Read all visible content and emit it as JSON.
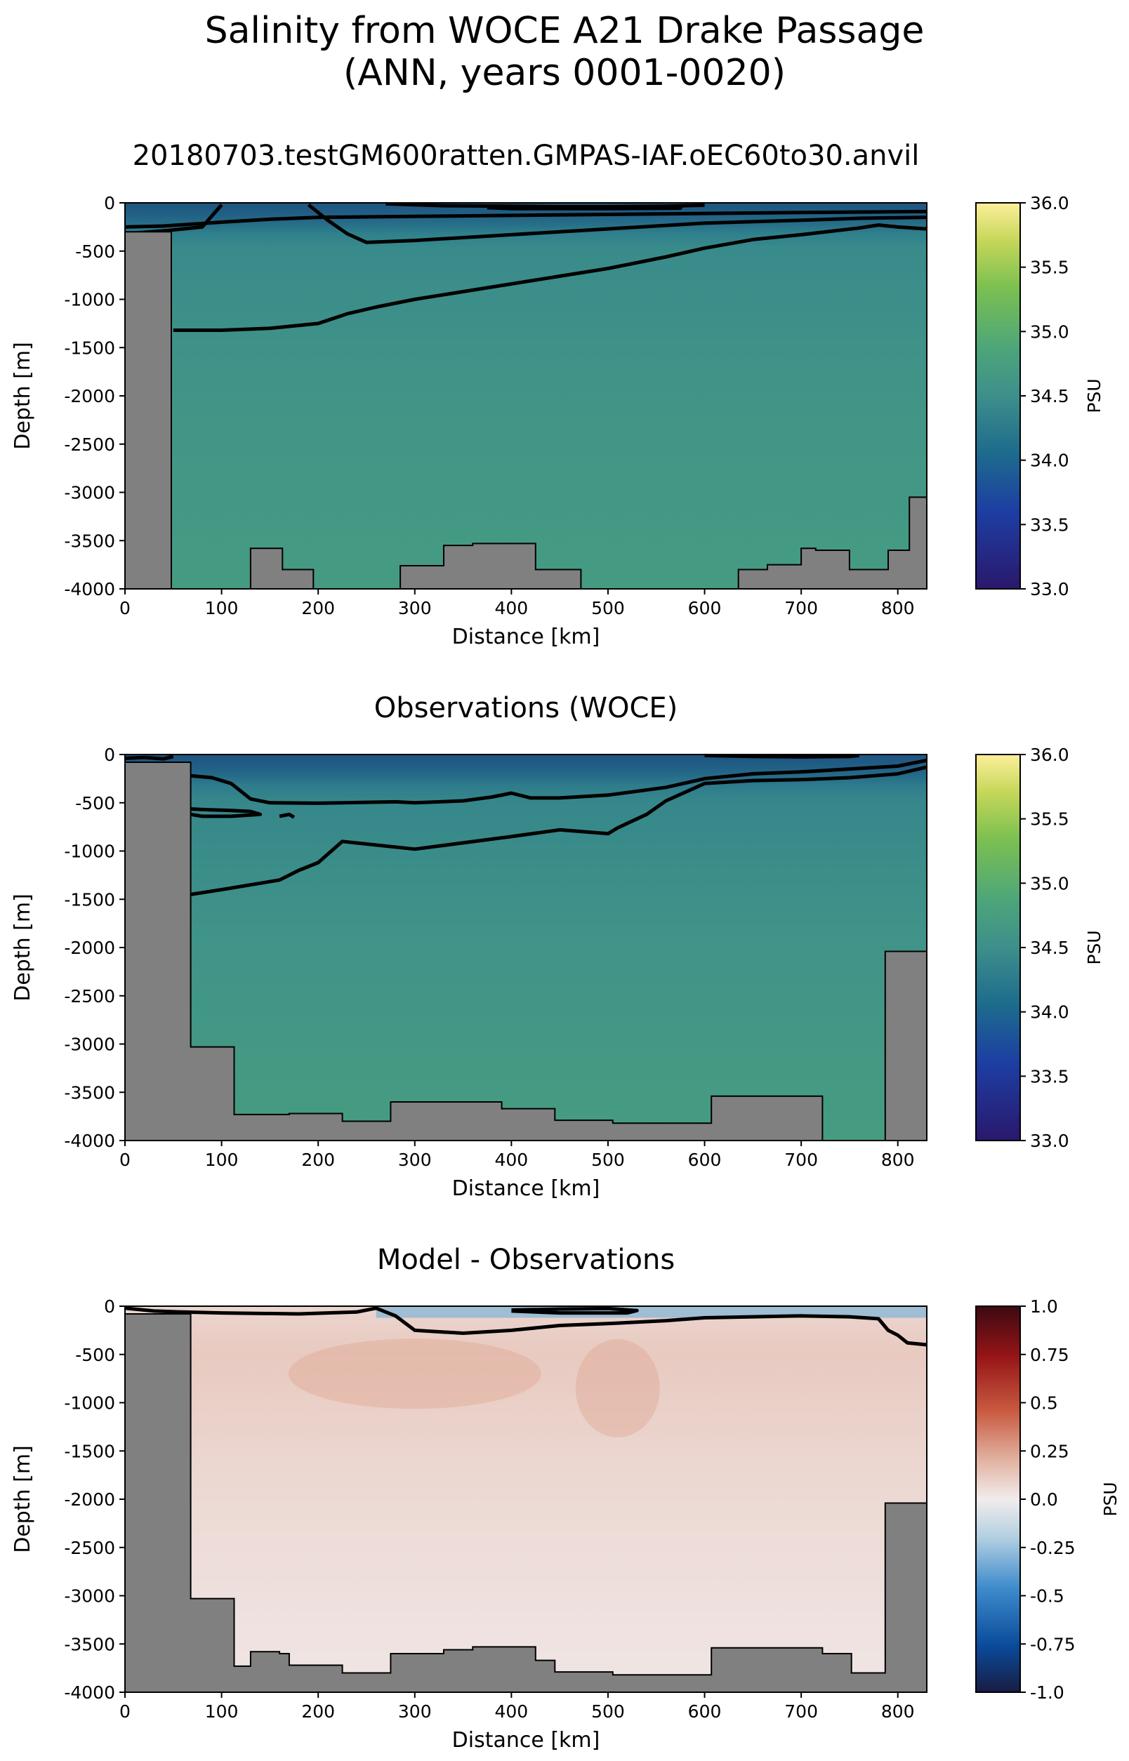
{
  "figure": {
    "title_line1": "Salinity from WOCE A21 Drake Passage",
    "title_line2": "(ANN, years 0001-0020)"
  },
  "chart_data": [
    {
      "type": "heatmap",
      "title": "20180703.testGM600ratten.GMPAS-IAF.oEC60to30.anvil",
      "xlabel": "Distance [km]",
      "ylabel": "Depth [m]",
      "xlim": [
        0,
        830
      ],
      "ylim": [
        -4000,
        0
      ],
      "xticks": [
        0,
        100,
        200,
        300,
        400,
        500,
        600,
        700,
        800
      ],
      "yticks": [
        0,
        -500,
        -1000,
        -1500,
        -2000,
        -2500,
        -3000,
        -3500,
        -4000
      ],
      "colorbar": {
        "label": "PSU",
        "range": [
          33.0,
          36.0
        ],
        "ticks": [
          33.0,
          33.5,
          34.0,
          34.5,
          35.0,
          35.5,
          36.0
        ],
        "colormap": "haline"
      },
      "field_approx": {
        "surface_psu": 34.05,
        "mid_psu": 34.45,
        "deep_psu": 34.7
      },
      "contours": [
        {
          "x": [
            0,
            40,
            100,
            150,
            200,
            300,
            400,
            500,
            600,
            700,
            760,
            830
          ],
          "y": [
            -250,
            -240,
            -200,
            -170,
            -150,
            -140,
            -130,
            -120,
            -110,
            -100,
            -95,
            -90
          ]
        },
        {
          "x": [
            50,
            100,
            150,
            200,
            230,
            260,
            300,
            350,
            400,
            450,
            500,
            560,
            600,
            650,
            700,
            760,
            780,
            800,
            830
          ],
          "y": [
            -1320,
            -1320,
            -1300,
            -1250,
            -1150,
            -1080,
            -1000,
            -920,
            -840,
            -760,
            -680,
            -560,
            -470,
            -380,
            -330,
            -260,
            -230,
            -250,
            -270
          ]
        },
        {
          "x": [
            0,
            40,
            80,
            100
          ],
          "y": [
            -320,
            -290,
            -250,
            -20
          ]
        },
        {
          "x": [
            190,
            210,
            230,
            250,
            300,
            400,
            500,
            600,
            700,
            760,
            830
          ],
          "y": [
            -20,
            -180,
            -320,
            -410,
            -390,
            -330,
            -270,
            -210,
            -180,
            -160,
            -150
          ]
        },
        {
          "x": [
            270,
            330,
            400,
            450,
            500,
            560,
            600
          ],
          "y": [
            -10,
            -30,
            -35,
            -40,
            -40,
            -35,
            -25
          ]
        },
        {
          "x": [
            375,
            400,
            500,
            570,
            575,
            500,
            400,
            375
          ],
          "y": [
            -50,
            -45,
            -40,
            -40,
            -55,
            -60,
            -60,
            -50
          ]
        }
      ],
      "topography": {
        "x": [
          0,
          0,
          48,
          48,
          130,
          130,
          163,
          163,
          195,
          195,
          285,
          285,
          330,
          330,
          360,
          360,
          425,
          425,
          472,
          472,
          635,
          635,
          665,
          665,
          700,
          700,
          715,
          715,
          750,
          750,
          790,
          790,
          812,
          812,
          830,
          830
        ],
        "y": [
          -4000,
          -300,
          -300,
          -4000,
          -4000,
          -3580,
          -3580,
          -3800,
          -3800,
          -4000,
          -4000,
          -3760,
          -3760,
          -3550,
          -3550,
          -3530,
          -3530,
          -3800,
          -3800,
          -4000,
          -4000,
          -3800,
          -3800,
          -3750,
          -3750,
          -3580,
          -3580,
          -3600,
          -3600,
          -3800,
          -3800,
          -3600,
          -3600,
          -3050,
          -3050,
          -4000
        ]
      }
    },
    {
      "type": "heatmap",
      "title": "Observations (WOCE)",
      "xlabel": "Distance [km]",
      "ylabel": "Depth [m]",
      "xlim": [
        0,
        830
      ],
      "ylim": [
        -4000,
        0
      ],
      "xticks": [
        0,
        100,
        200,
        300,
        400,
        500,
        600,
        700,
        800
      ],
      "yticks": [
        0,
        -500,
        -1000,
        -1500,
        -2000,
        -2500,
        -3000,
        -3500,
        -4000
      ],
      "colorbar": {
        "label": "PSU",
        "range": [
          33.0,
          36.0
        ],
        "ticks": [
          33.0,
          33.5,
          34.0,
          34.5,
          35.0,
          35.5,
          36.0
        ],
        "colormap": "haline"
      },
      "field_approx": {
        "surface_psu": 34.0,
        "mid_psu": 34.4,
        "deep_psu": 34.72
      },
      "contours": [
        {
          "x": [
            68,
            100,
            160,
            180,
            200,
            225,
            300,
            400,
            450,
            500,
            510,
            540,
            560,
            600,
            650,
            700,
            750,
            800,
            830
          ],
          "y": [
            -1450,
            -1400,
            -1300,
            -1200,
            -1120,
            -900,
            -980,
            -850,
            -780,
            -820,
            -760,
            -620,
            -480,
            -300,
            -270,
            -260,
            -240,
            -200,
            -130
          ]
        },
        {
          "x": [
            68,
            90,
            110,
            120,
            130,
            150,
            200,
            280,
            300,
            350,
            380,
            400,
            420,
            450,
            500,
            560,
            600,
            650,
            700,
            750,
            800,
            830
          ],
          "y": [
            -220,
            -240,
            -300,
            -380,
            -460,
            -500,
            -505,
            -490,
            -500,
            -480,
            -440,
            -400,
            -450,
            -450,
            -420,
            -340,
            -250,
            -200,
            -180,
            -150,
            -120,
            -60
          ]
        },
        {
          "x": [
            60,
            80,
            110,
            130,
            140,
            110,
            80,
            68
          ],
          "y": [
            -560,
            -570,
            -580,
            -590,
            -620,
            -640,
            -640,
            -620
          ]
        },
        {
          "x": [
            0,
            20,
            40,
            50
          ],
          "y": [
            -40,
            -30,
            -45,
            -20
          ]
        },
        {
          "x": [
            600,
            650,
            700,
            750,
            760
          ],
          "y": [
            -10,
            -20,
            -25,
            -20,
            -10
          ]
        },
        {
          "x": [
            160,
            170,
            175
          ],
          "y": [
            -640,
            -620,
            -650
          ]
        }
      ],
      "topography": {
        "x": [
          0,
          0,
          68,
          68,
          113,
          113,
          170,
          170,
          225,
          225,
          275,
          275,
          390,
          390,
          445,
          445,
          505,
          505,
          607,
          607,
          722,
          722,
          787,
          787,
          830,
          830
        ],
        "y": [
          -4000,
          -80,
          -80,
          -3030,
          -3030,
          -3730,
          -3730,
          -3720,
          -3720,
          -3800,
          -3800,
          -3600,
          -3600,
          -3670,
          -3670,
          -3790,
          -3790,
          -3820,
          -3820,
          -3540,
          -3540,
          -4000,
          -4000,
          -2040,
          -2040,
          -4000
        ]
      }
    },
    {
      "type": "heatmap",
      "title": "Model - Observations",
      "xlabel": "Distance [km]",
      "ylabel": "Depth [m]",
      "xlim": [
        0,
        830
      ],
      "ylim": [
        -4000,
        0
      ],
      "xticks": [
        0,
        100,
        200,
        300,
        400,
        500,
        600,
        700,
        800
      ],
      "yticks": [
        0,
        -500,
        -1000,
        -1500,
        -2000,
        -2500,
        -3000,
        -3500,
        -4000
      ],
      "colorbar": {
        "label": "PSU",
        "range": [
          -1.0,
          1.0
        ],
        "ticks": [
          1.0,
          0.75,
          0.5,
          0.25,
          0.0,
          -0.25,
          -0.5,
          -0.75,
          -1.0
        ],
        "colormap": "balance"
      },
      "field_approx": {
        "near_surface_psu": 0.08,
        "upper_psu": 0.12,
        "deep_psu": 0.02
      },
      "contours": [
        {
          "x": [
            0,
            30,
            60,
            100,
            180,
            240,
            260,
            280,
            300,
            350,
            400,
            450,
            500,
            560,
            600,
            650,
            700,
            750,
            780,
            790,
            800,
            810,
            830
          ],
          "y": [
            -20,
            -50,
            -60,
            -70,
            -80,
            -60,
            -20,
            -100,
            -250,
            -280,
            -250,
            -200,
            -180,
            -150,
            -120,
            -110,
            -100,
            -110,
            -130,
            -250,
            -300,
            -380,
            -400
          ]
        },
        {
          "x": [
            400,
            450,
            500,
            530,
            520,
            450,
            400
          ],
          "y": [
            -40,
            -30,
            -25,
            -45,
            -70,
            -70,
            -50
          ]
        }
      ],
      "topography": {
        "x": [
          0,
          0,
          68,
          68,
          113,
          113,
          130,
          130,
          160,
          160,
          170,
          170,
          225,
          225,
          275,
          275,
          330,
          330,
          360,
          360,
          425,
          425,
          445,
          445,
          505,
          505,
          607,
          607,
          722,
          722,
          752,
          752,
          787,
          787,
          830,
          830
        ],
        "y": [
          -4000,
          -80,
          -80,
          -3030,
          -3030,
          -3730,
          -3730,
          -3580,
          -3580,
          -3600,
          -3600,
          -3720,
          -3720,
          -3800,
          -3800,
          -3600,
          -3600,
          -3560,
          -3560,
          -3530,
          -3530,
          -3670,
          -3670,
          -3790,
          -3790,
          -3820,
          -3820,
          -3540,
          -3540,
          -3600,
          -3600,
          -3800,
          -3800,
          -2040,
          -2040,
          -4000
        ]
      }
    }
  ]
}
